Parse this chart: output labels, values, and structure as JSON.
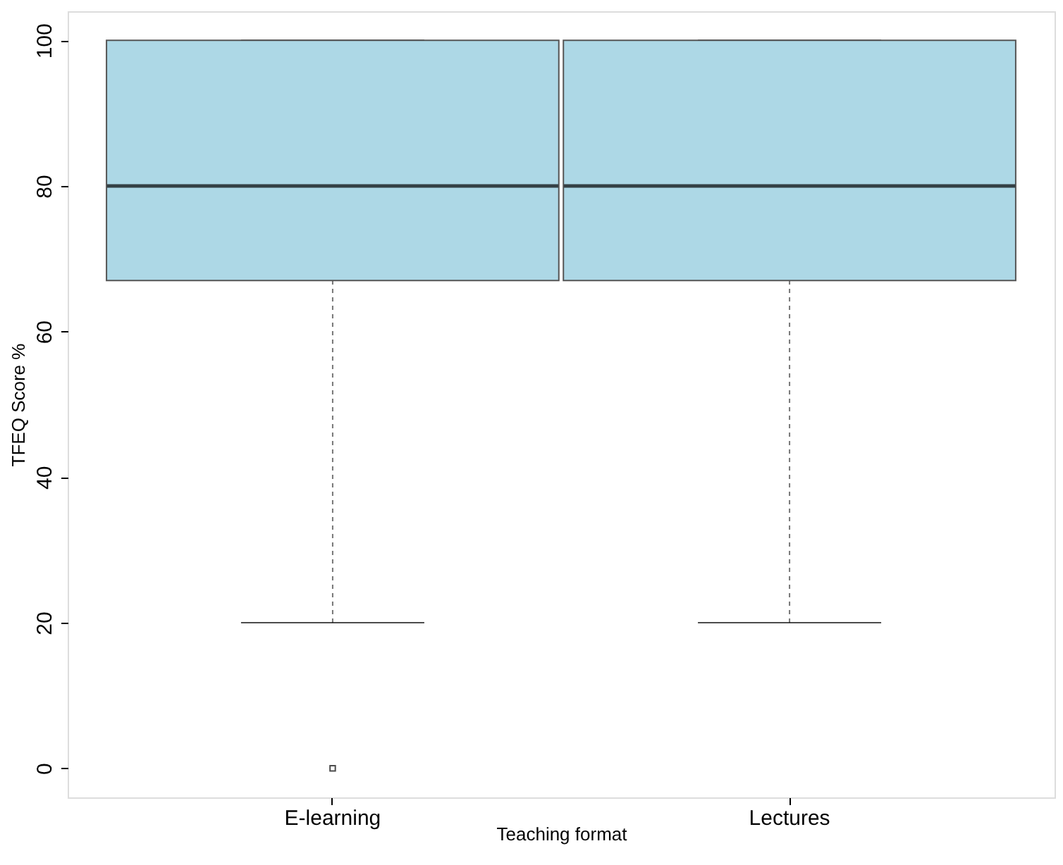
{
  "chart_data": {
    "type": "box",
    "xlabel": "Teaching format",
    "ylabel": "TFEQ Score %",
    "categories": [
      "E-learning",
      "Lectures"
    ],
    "boxes": [
      {
        "low": 20,
        "q1": 67,
        "median": 80,
        "q3": 100,
        "high": 100,
        "outliers": [
          0
        ]
      },
      {
        "low": 20,
        "q1": 67,
        "median": 80,
        "q3": 100,
        "high": 100
      }
    ],
    "color": "#add8e6",
    "ylim": [
      -4,
      104
    ],
    "yticks": [
      0,
      20,
      40,
      60,
      80,
      100
    ],
    "grid": false
  }
}
